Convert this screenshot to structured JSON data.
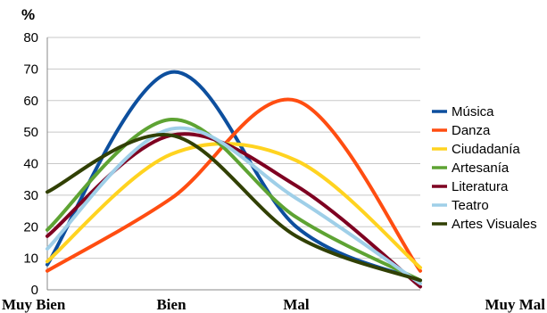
{
  "chart_data": {
    "type": "line",
    "unit_label": "%",
    "categories": [
      "Muy Bien",
      "Bien",
      "Mal",
      "Muy Mal"
    ],
    "ylim": [
      0,
      80
    ],
    "yticks": [
      0,
      10,
      20,
      30,
      40,
      50,
      60,
      70,
      80
    ],
    "grid": "horizontal",
    "legend_position": "right",
    "series": [
      {
        "name": "Música",
        "color": "#0d4f9e",
        "values": [
          8,
          69,
          20,
          3
        ]
      },
      {
        "name": "Danza",
        "color": "#ff4d11",
        "values": [
          6,
          29,
          60,
          6
        ]
      },
      {
        "name": "Ciudadanía",
        "color": "#ffd320",
        "values": [
          9,
          43,
          41,
          7
        ]
      },
      {
        "name": "Artesanía",
        "color": "#5ea333",
        "values": [
          19,
          54,
          23,
          3
        ]
      },
      {
        "name": "Literatura",
        "color": "#7e0021",
        "values": [
          17,
          49,
          33,
          1
        ]
      },
      {
        "name": "Teatro",
        "color": "#9fcfe8",
        "values": [
          13,
          51,
          29,
          2
        ]
      },
      {
        "name": "Artes Visuales",
        "color": "#314004",
        "values": [
          31,
          49,
          17,
          3
        ]
      }
    ]
  }
}
